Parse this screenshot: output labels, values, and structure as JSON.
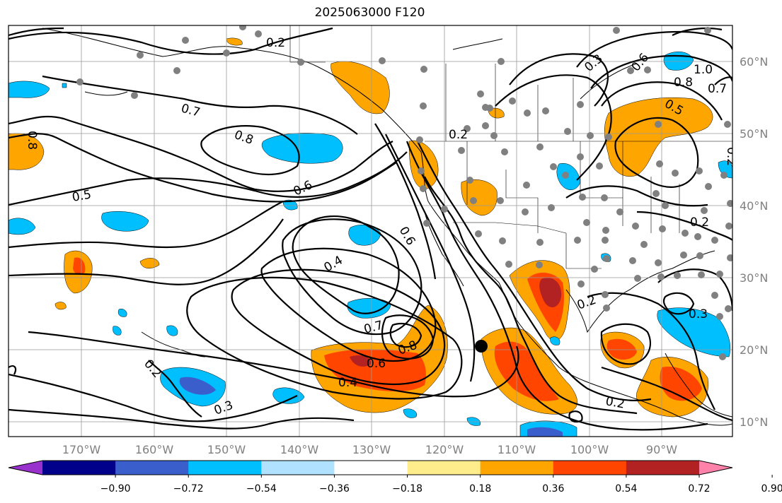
{
  "title": "2025063000 F120",
  "latitude_labels": [
    "60°N",
    "50°N",
    "40°N",
    "30°N",
    "20°N",
    "10°N"
  ],
  "longitude_labels": [
    "170°W",
    "160°W",
    "150°W",
    "140°W",
    "130°W",
    "120°W",
    "110°W",
    "100°W",
    "90°W"
  ],
  "contour_labels": [
    "0.2",
    "0.7",
    "0.8",
    "0.5",
    "0.6",
    "0.8",
    "0.4",
    "0.6",
    "0.7",
    "0.8",
    "0.6",
    "0.4",
    "0.3",
    "0.2",
    "0.2",
    "0.2",
    "0.3",
    "0.6",
    "0.8",
    "1.0",
    "0.7",
    "0.5",
    "0.2",
    "0.3",
    "0.2",
    "0.2"
  ],
  "colorbar": {
    "ticks": [
      "−0.90",
      "−0.72",
      "−0.54",
      "−0.36",
      "−0.18",
      "0.18",
      "0.36",
      "0.54",
      "0.72",
      "0.90"
    ],
    "colors": [
      "#9932CC",
      "#00008B",
      "#3A5FCD",
      "#00BFFF",
      "#B0E2FF",
      "#FFFFFF",
      "#FFEC8B",
      "#FFA500",
      "#FF4500",
      "#B22222",
      "#FF82AB"
    ]
  },
  "marker": "black-dot"
}
